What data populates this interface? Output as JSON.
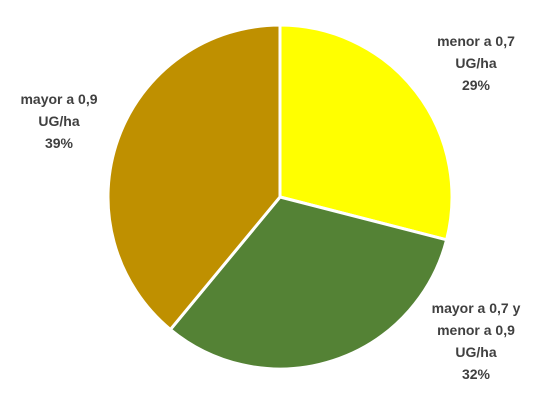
{
  "chart_data": {
    "type": "pie",
    "title": "",
    "start_angle_deg": 0,
    "direction": "clockwise",
    "legend": "none",
    "slices": [
      {
        "label_lines": [
          "menor a 0,7",
          "UG/ha"
        ],
        "value": 29,
        "pct_label": "29%",
        "color": "#FFFF00"
      },
      {
        "label_lines": [
          "mayor a 0,7 y",
          "menor a 0,9",
          "UG/ha"
        ],
        "value": 32,
        "pct_label": "32%",
        "color": "#548235"
      },
      {
        "label_lines": [
          "mayor a 0,9",
          "UG/ha"
        ],
        "value": 39,
        "pct_label": "39%",
        "color": "#BF9000"
      }
    ]
  }
}
